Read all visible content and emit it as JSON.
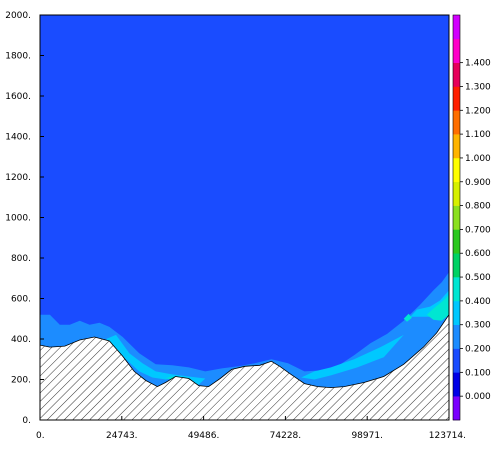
{
  "chart_data": {
    "type": "heatmap",
    "title": "",
    "xlabel": "",
    "ylabel": "",
    "xlim": [
      0,
      123714
    ],
    "ylim": [
      0,
      2000
    ],
    "x_tick_labels": [
      "0.",
      "24743.",
      "49486.",
      "74228.",
      "98971.",
      "123714."
    ],
    "x_tick_values": [
      0,
      24743,
      49486,
      74228,
      98971,
      123714
    ],
    "y_tick_labels": [
      "0.",
      "200.",
      "400.",
      "600.",
      "800.",
      "1000.",
      "1200.",
      "1400.",
      "1600.",
      "1800.",
      "2000."
    ],
    "y_tick_values": [
      0,
      200,
      400,
      600,
      800,
      1000,
      1200,
      1400,
      1600,
      1800,
      2000
    ],
    "colorbar": {
      "levels": [
        "0.000",
        "0.100",
        "0.200",
        "0.300",
        "0.400",
        "0.500",
        "0.600",
        "0.700",
        "0.800",
        "0.900",
        "1.000",
        "1.100",
        "1.200",
        "1.300",
        "1.400"
      ],
      "colors": [
        "#7a00ff",
        "#0000e6",
        "#1a4cff",
        "#1c8cff",
        "#00c8ff",
        "#00e6d2",
        "#00d264",
        "#2bc81e",
        "#8be01e",
        "#d6f000",
        "#ffff00",
        "#ffb400",
        "#ff6e00",
        "#ff1e00",
        "#e6005a",
        "#ff00c8",
        "#d200ff"
      ]
    },
    "terrain": {
      "x": [
        0,
        3000,
        7500,
        12000,
        16500,
        21000,
        25000,
        28500,
        32000,
        35500,
        38000,
        41000,
        45000,
        48000,
        51000,
        54500,
        58000,
        62000,
        66500,
        70000,
        72500,
        75500,
        80000,
        84000,
        88000,
        92000,
        98000,
        104000,
        110000,
        116000,
        120000,
        123714
      ],
      "y": [
        370,
        360,
        365,
        395,
        410,
        390,
        315,
        240,
        195,
        165,
        185,
        215,
        205,
        170,
        165,
        205,
        250,
        265,
        270,
        290,
        265,
        230,
        180,
        165,
        160,
        165,
        185,
        215,
        275,
        360,
        430,
        520
      ]
    },
    "contours": [
      {
        "level": "0.200",
        "upper_boundary": {
          "x": [
            0,
            3000,
            6000,
            9000,
            12000,
            15000,
            18000,
            21000,
            25000,
            30000,
            35000,
            40000,
            45000,
            50000,
            55000,
            60000,
            65000,
            70000,
            75000,
            80000,
            85000,
            90000,
            95000,
            100000,
            105000,
            110000,
            115000,
            119000,
            121500,
            123714
          ],
          "y": [
            520,
            520,
            470,
            470,
            490,
            470,
            480,
            460,
            410,
            330,
            275,
            270,
            260,
            240,
            255,
            265,
            280,
            300,
            280,
            240,
            245,
            265,
            320,
            380,
            425,
            490,
            570,
            640,
            680,
            730
          ]
        }
      },
      {
        "level": "0.300",
        "regions": [
          {
            "x": [
              112000,
              114000,
              118000,
              121000,
              123714,
              123714,
              121500,
              118000
            ],
            "y": [
              510,
              545,
              560,
              590,
              640,
              540,
              500,
              510
            ]
          },
          {
            "x": [
              20000,
              23000,
              27000,
              31000,
              35000,
              40000,
              45000,
              50000,
              48000,
              45000,
              42000,
              38000,
              34000,
              30000,
              26000,
              22000
            ],
            "y": [
              400,
              420,
              330,
              280,
              240,
              225,
              215,
              205,
              175,
              190,
              210,
              200,
              210,
              240,
              300,
              370
            ]
          },
          {
            "x": [
              79000,
              83000,
              88000,
              95000,
              103000,
              110000,
              104000,
              96000,
              88000,
              83000
            ],
            "y": [
              210,
              240,
              260,
              300,
              360,
              420,
              310,
              260,
              220,
              200
            ]
          }
        ]
      },
      {
        "level": "0.400",
        "regions": [
          {
            "x": [
              117000,
              119000,
              122000,
              123714,
              123714,
              121500,
              119000
            ],
            "y": [
              520,
              550,
              590,
              620,
              520,
              490,
              495
            ]
          },
          {
            "x": [
              38000,
              40000,
              43000,
              41000
            ],
            "y": [
              207,
              215,
              205,
              197
            ]
          },
          {
            "x": [
              110000,
              111500,
              112500,
              111000
            ],
            "y": [
              500,
              525,
              505,
              485
            ]
          }
        ]
      }
    ]
  }
}
